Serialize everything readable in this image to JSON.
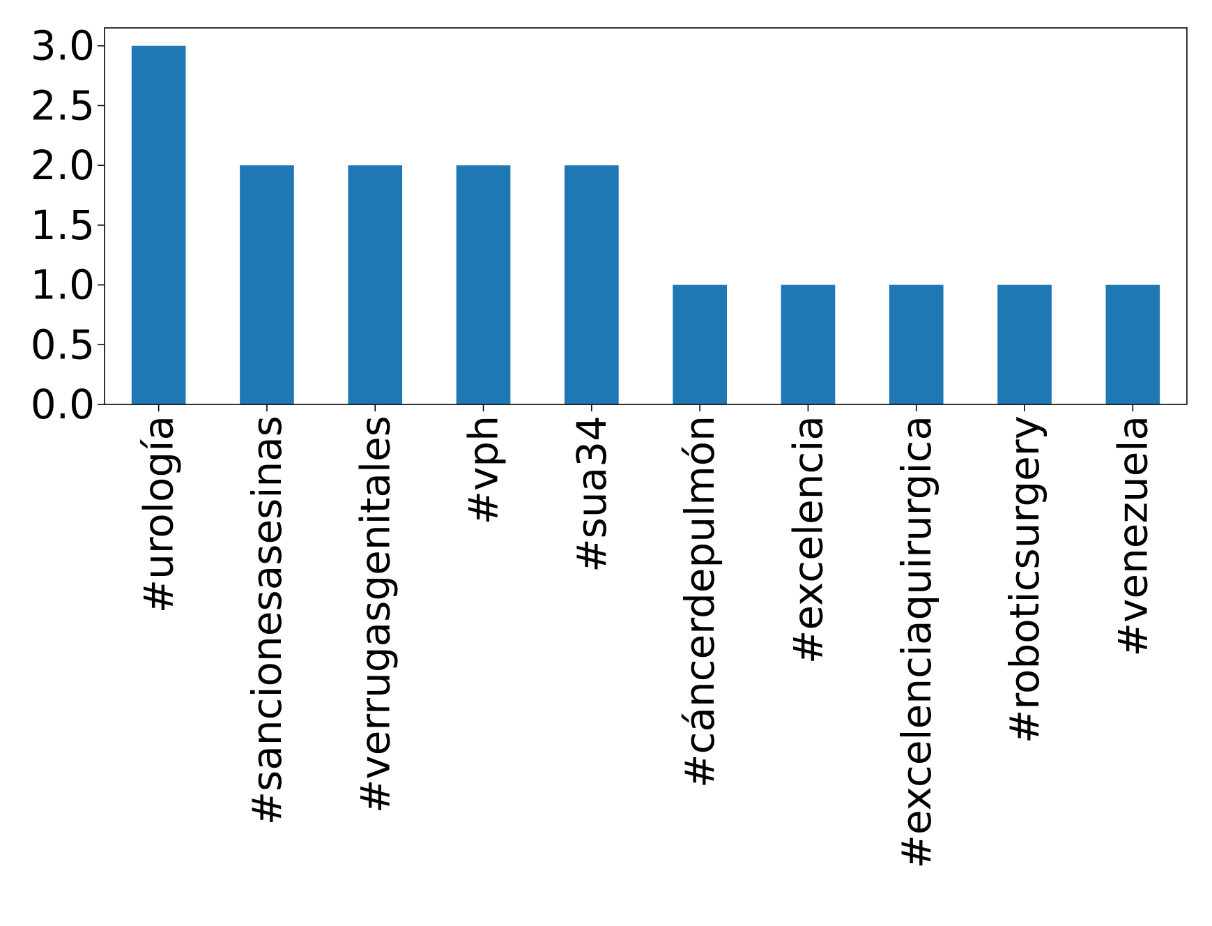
{
  "chart_data": {
    "type": "bar",
    "title": "",
    "xlabel": "",
    "ylabel": "",
    "categories": [
      "#urología",
      "#sancionesasesinas",
      "#verrugasgenitales",
      "#vph",
      "#sua34",
      "#cáncerdepulmón",
      "#excelencia",
      "#excelenciaquirurgica",
      "#roboticsurgery",
      "#venezuela"
    ],
    "values": [
      3,
      2,
      2,
      2,
      2,
      1,
      1,
      1,
      1,
      1
    ],
    "ylim": [
      0,
      3.15
    ],
    "yticks": [
      0.0,
      0.5,
      1.0,
      1.5,
      2.0,
      2.5,
      3.0
    ],
    "ytick_labels": [
      "0.0",
      "0.5",
      "1.0",
      "1.5",
      "2.0",
      "2.5",
      "3.0"
    ],
    "bar_color": "#1f77b4",
    "grid": false,
    "legend": "none"
  }
}
